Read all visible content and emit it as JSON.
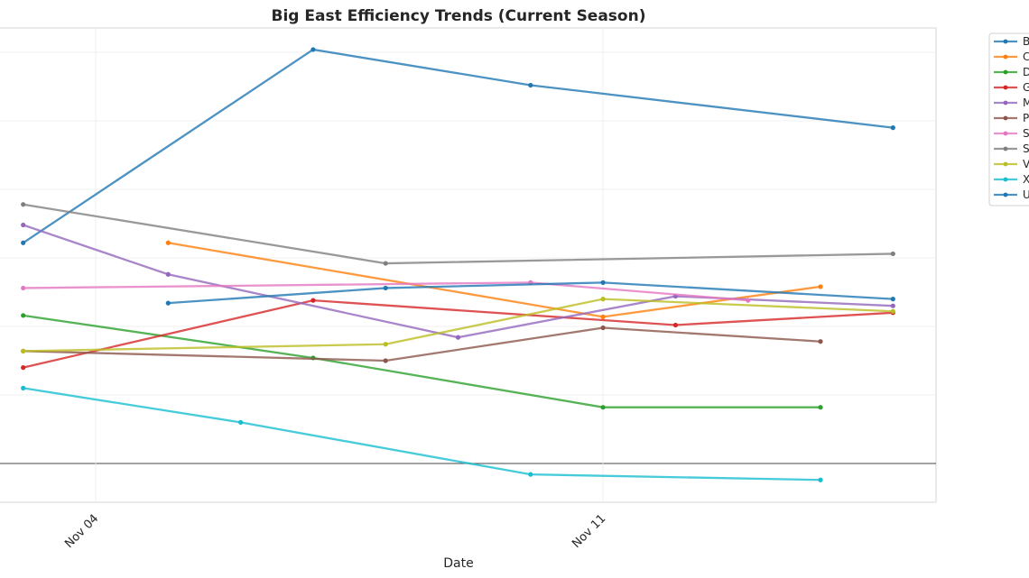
{
  "chart_data": {
    "type": "line",
    "title": "Big East Efficiency Trends (Current Season)",
    "xlabel": "Date",
    "ylabel": "",
    "x_tick_labels": [
      "Nov 04",
      "Nov 11"
    ],
    "grid": true,
    "legend_placement": "outside-right",
    "zero_line": true,
    "ylim": [
      -2.8,
      31.8
    ],
    "series": [
      {
        "name": "B",
        "color": "#1f77b4",
        "x": [
          "Nov 03",
          "Nov 07",
          "Nov 10",
          "Nov 15"
        ],
        "y": [
          16.1,
          30.2,
          27.6,
          24.5
        ]
      },
      {
        "name": "C",
        "color": "#ff7f0e",
        "x": [
          "Nov 05",
          "Nov 11",
          "Nov 14"
        ],
        "y": [
          16.1,
          10.7,
          12.9
        ]
      },
      {
        "name": "D",
        "color": "#2ca02c",
        "x": [
          "Nov 03",
          "Nov 07",
          "Nov 11",
          "Nov 14"
        ],
        "y": [
          10.8,
          7.7,
          4.1,
          4.1
        ]
      },
      {
        "name": "G",
        "color": "#d62728",
        "x": [
          "Nov 03",
          "Nov 07",
          "Nov 12",
          "Nov 15"
        ],
        "y": [
          7.0,
          11.9,
          10.1,
          11.0
        ]
      },
      {
        "name": "M",
        "color": "#9467bd",
        "x": [
          "Nov 03",
          "Nov 05",
          "Nov 09",
          "Nov 12",
          "Nov 15"
        ],
        "y": [
          17.4,
          13.8,
          9.2,
          12.2,
          11.5
        ]
      },
      {
        "name": "P",
        "color": "#8c564b",
        "x": [
          "Nov 03",
          "Nov 08",
          "Nov 11",
          "Nov 14"
        ],
        "y": [
          8.2,
          7.5,
          9.9,
          8.9
        ]
      },
      {
        "name": "S",
        "color": "#e377c2",
        "x": [
          "Nov 03",
          "Nov 10",
          "Nov 13"
        ],
        "y": [
          12.8,
          13.2,
          11.9
        ]
      },
      {
        "name": "S",
        "color": "#7f7f7f",
        "x": [
          "Nov 03",
          "Nov 08",
          "Nov 15"
        ],
        "y": [
          18.9,
          14.6,
          15.3
        ]
      },
      {
        "name": "V",
        "color": "#bcbd22",
        "x": [
          "Nov 03",
          "Nov 08",
          "Nov 11",
          "Nov 15"
        ],
        "y": [
          8.2,
          8.7,
          12.0,
          11.1
        ]
      },
      {
        "name": "X",
        "color": "#17becf",
        "x": [
          "Nov 03",
          "Nov 06",
          "Nov 10",
          "Nov 14"
        ],
        "y": [
          5.5,
          3.0,
          -0.8,
          -1.2
        ]
      },
      {
        "name": "U",
        "color": "#1f77b4",
        "x": [
          "Nov 05",
          "Nov 08",
          "Nov 11",
          "Nov 15"
        ],
        "y": [
          11.7,
          12.8,
          13.2,
          12.0
        ]
      }
    ]
  }
}
